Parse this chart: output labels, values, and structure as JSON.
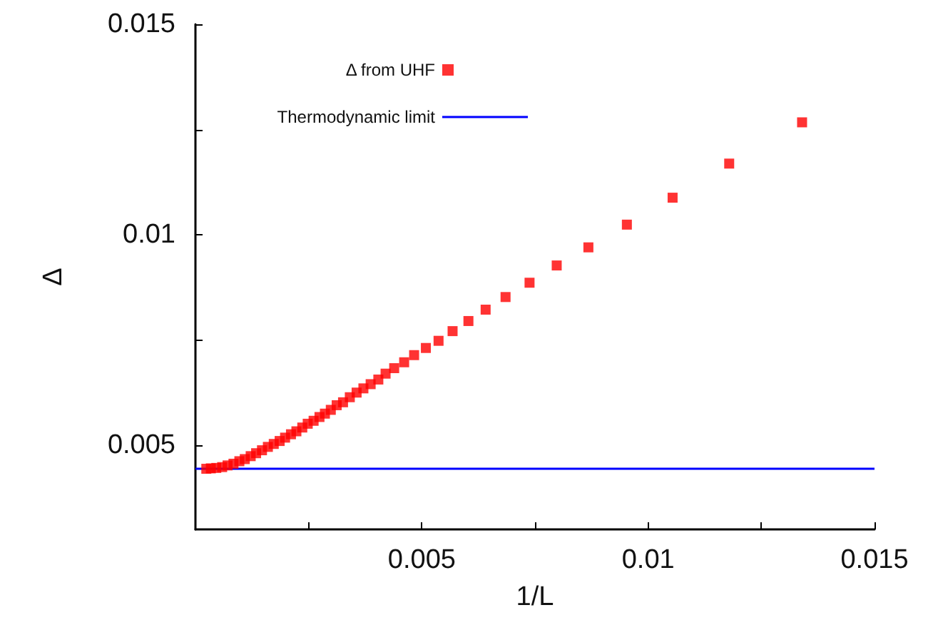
{
  "chart_data": {
    "type": "scatter",
    "xlabel": "1/L",
    "ylabel": "Δ",
    "xlim": [
      0,
      0.015
    ],
    "ylim": [
      0.003,
      0.015
    ],
    "xticks": [
      {
        "value": 0.0025,
        "label": null
      },
      0.005,
      {
        "value": 0.0075,
        "label": null
      },
      0.01,
      {
        "value": 0.0125,
        "label": null
      },
      0.015
    ],
    "yticks": [
      0.005,
      {
        "value": 0.0075,
        "label": null
      },
      0.01,
      {
        "value": 0.0125,
        "label": null
      },
      0.015
    ],
    "grid": false,
    "legend": "top left",
    "marker": "square",
    "series": [
      {
        "name": "Δ from UHF",
        "color": "#ff0000",
        "x": [
          0.0134,
          0.01179,
          0.01054,
          0.00953,
          0.00868,
          0.00798,
          0.00738,
          0.00685,
          0.00641,
          0.00603,
          0.00568,
          0.00537,
          0.00509,
          0.00483,
          0.00461,
          0.00439,
          0.0042,
          0.00404,
          0.00387,
          0.00371,
          0.00356,
          0.00341,
          0.00326,
          0.00312,
          0.00299,
          0.00286,
          0.00274,
          0.00261,
          0.00248,
          0.00236,
          0.00223,
          0.00211,
          0.00198,
          0.00186,
          0.00173,
          0.0016,
          0.00147,
          0.00134,
          0.00122,
          0.00109,
          0.00097,
          0.00084,
          0.00071,
          0.00059,
          0.00046,
          0.00034,
          0.00024
        ],
        "values": [
          0.01267,
          0.01169,
          0.01088,
          0.01024,
          0.0097,
          0.00927,
          0.00886,
          0.00852,
          0.00822,
          0.00795,
          0.00771,
          0.00748,
          0.00731,
          0.00714,
          0.00697,
          0.00683,
          0.0067,
          0.00656,
          0.00645,
          0.00635,
          0.00625,
          0.00614,
          0.00602,
          0.00595,
          0.00584,
          0.00575,
          0.00567,
          0.00558,
          0.00551,
          0.00542,
          0.00533,
          0.00526,
          0.00518,
          0.0051,
          0.00503,
          0.00496,
          0.00488,
          0.00481,
          0.00474,
          0.00467,
          0.00462,
          0.00456,
          0.00452,
          0.00448,
          0.00446,
          0.00445,
          0.00444
        ]
      },
      {
        "name": "Thermodynamic limit",
        "type": "line",
        "color": "#0000ff",
        "marker": "none",
        "line_style": "solid",
        "x": [
          0,
          0.015
        ],
        "values": [
          0.00444,
          0.00444
        ]
      }
    ]
  }
}
